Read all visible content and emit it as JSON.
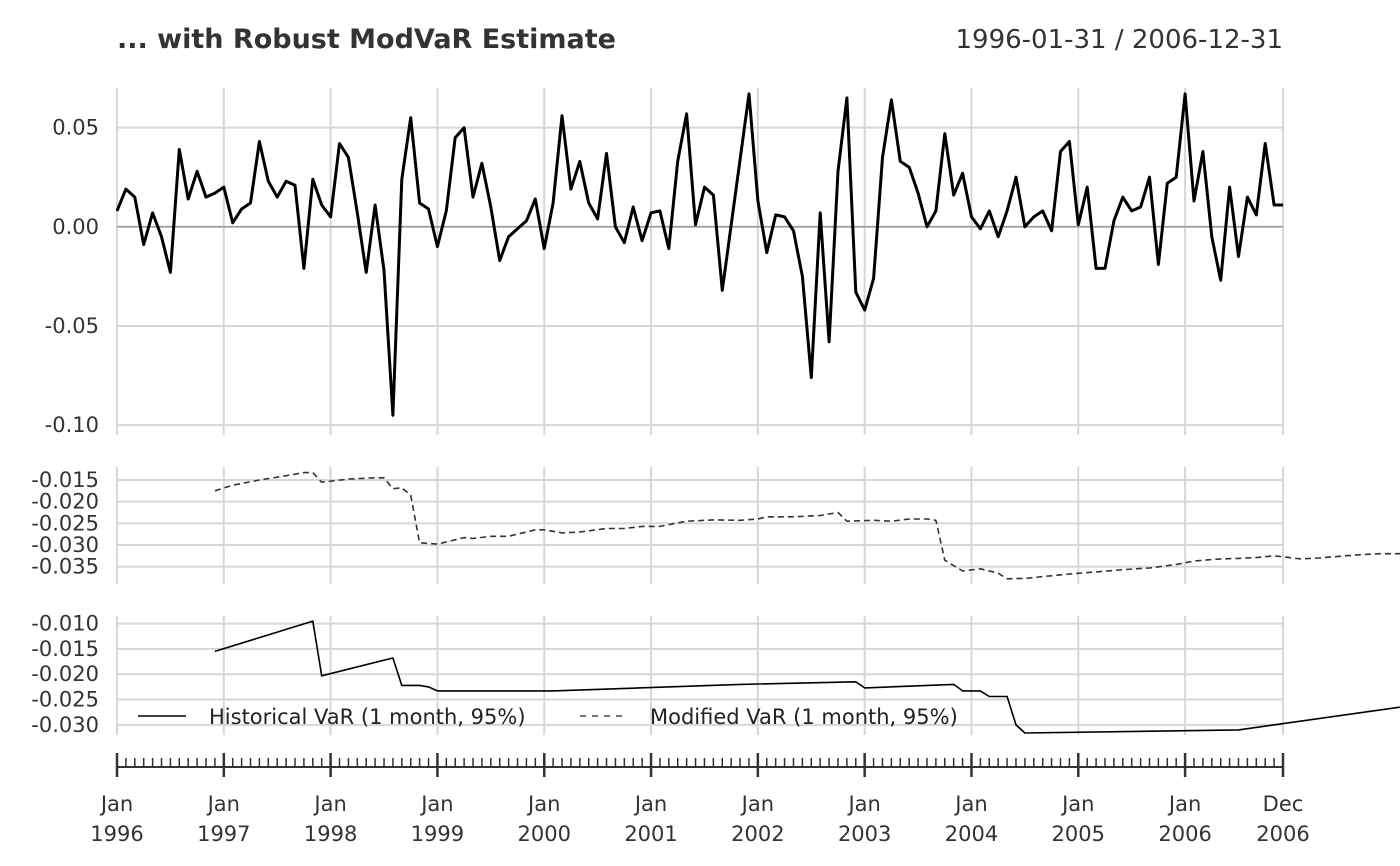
{
  "chart_data": {
    "type": "line",
    "title": "... with Robust ModVaR Estimate",
    "date_range": "1996-01-31 / 2006-12-31",
    "x_labels": [
      {
        "m": "Jan",
        "y": "1996"
      },
      {
        "m": "Jan",
        "y": "1997"
      },
      {
        "m": "Jan",
        "y": "1998"
      },
      {
        "m": "Jan",
        "y": "1999"
      },
      {
        "m": "Jan",
        "y": "2000"
      },
      {
        "m": "Jan",
        "y": "2001"
      },
      {
        "m": "Jan",
        "y": "2002"
      },
      {
        "m": "Jan",
        "y": "2003"
      },
      {
        "m": "Jan",
        "y": "2004"
      },
      {
        "m": "Jan",
        "y": "2005"
      },
      {
        "m": "Jan",
        "y": "2006"
      },
      {
        "m": "Dec",
        "y": "2006"
      }
    ],
    "panels": [
      {
        "name": "returns",
        "ylim": [
          -0.105,
          0.07
        ],
        "ticks": [
          0.05,
          0.0,
          -0.05,
          -0.1
        ],
        "tick_labels": [
          "0.05",
          "0.00",
          "-0.05",
          "-0.10"
        ],
        "zero_line": true,
        "series": [
          {
            "name": "Returns",
            "style": "solid",
            "color": "#000000",
            "start_month": 0,
            "values": [
              0.008,
              0.019,
              0.015,
              -0.009,
              0.007,
              -0.005,
              -0.023,
              0.039,
              0.014,
              0.028,
              0.015,
              0.017,
              0.02,
              0.002,
              0.009,
              0.012,
              0.043,
              0.023,
              0.015,
              0.023,
              0.021,
              -0.021,
              0.024,
              0.011,
              0.005,
              0.042,
              0.035,
              0.007,
              -0.023,
              0.011,
              -0.022,
              -0.095,
              0.024,
              0.055,
              0.012,
              0.009,
              -0.01,
              0.008,
              0.045,
              0.05,
              0.015,
              0.032,
              0.01,
              -0.017,
              -0.005,
              -0.001,
              0.003,
              0.014,
              -0.011,
              0.012,
              0.056,
              0.019,
              0.033,
              0.012,
              0.004,
              0.037,
              0.0,
              -0.008,
              0.01,
              -0.007,
              0.007,
              0.008,
              -0.011,
              0.033,
              0.057,
              0.001,
              0.02,
              0.016,
              -0.032,
              0.001,
              0.034,
              0.067,
              0.013,
              -0.013,
              0.006,
              0.005,
              -0.002,
              -0.025,
              -0.076,
              0.007,
              -0.058,
              0.028,
              0.065,
              -0.033,
              -0.042,
              -0.026,
              0.035,
              0.064,
              0.033,
              0.03,
              0.017,
              0.0,
              0.008,
              0.047,
              0.016,
              0.027,
              0.005,
              -0.001,
              0.008,
              -0.005,
              0.008,
              0.025,
              0.0,
              0.005,
              0.008,
              -0.002,
              0.038,
              0.043,
              0.001,
              0.02,
              -0.021,
              -0.021,
              0.003,
              0.015,
              0.008,
              0.01,
              0.025,
              -0.019,
              0.022,
              0.025,
              0.067,
              0.013,
              0.038,
              -0.005,
              -0.027,
              0.02,
              -0.015,
              0.015,
              0.006,
              0.042,
              0.011,
              0.011
            ]
          }
        ]
      },
      {
        "name": "modified-var",
        "ylim": [
          -0.039,
          -0.012
        ],
        "ticks": [
          -0.015,
          -0.02,
          -0.025,
          -0.03,
          -0.035
        ],
        "tick_labels": [
          "-0.015",
          "-0.020",
          "-0.025",
          "-0.030",
          "-0.035"
        ],
        "series": [
          {
            "name": "Modified VaR (1 month, 95%)",
            "style": "dashed",
            "color": "#333333",
            "points": [
              [
                11,
                -0.0175
              ],
              [
                13,
                -0.0162
              ],
              [
                16,
                -0.015
              ],
              [
                19,
                -0.014
              ],
              [
                21,
                -0.0133
              ],
              [
                22,
                -0.0133
              ],
              [
                23,
                -0.0155
              ],
              [
                26,
                -0.0148
              ],
              [
                29,
                -0.0145
              ],
              [
                30,
                -0.0145
              ],
              [
                31,
                -0.017
              ],
              [
                32,
                -0.0168
              ],
              [
                33,
                -0.0185
              ],
              [
                34,
                -0.0295
              ],
              [
                36,
                -0.0298
              ],
              [
                39,
                -0.0283
              ],
              [
                40,
                -0.0285
              ],
              [
                42,
                -0.028
              ],
              [
                44,
                -0.028
              ],
              [
                47,
                -0.0265
              ],
              [
                48,
                -0.0265
              ],
              [
                50,
                -0.0272
              ],
              [
                52,
                -0.027
              ],
              [
                55,
                -0.0262
              ],
              [
                57,
                -0.0262
              ],
              [
                59,
                -0.0257
              ],
              [
                61,
                -0.0257
              ],
              [
                64,
                -0.0245
              ],
              [
                67,
                -0.0242
              ],
              [
                70,
                -0.0243
              ],
              [
                72,
                -0.024
              ],
              [
                73,
                -0.0235
              ],
              [
                76,
                -0.0235
              ],
              [
                79,
                -0.0232
              ],
              [
                81,
                -0.0225
              ],
              [
                82,
                -0.0245
              ],
              [
                85,
                -0.0243
              ],
              [
                87,
                -0.0245
              ],
              [
                89,
                -0.024
              ],
              [
                91,
                -0.024
              ],
              [
                92,
                -0.0243
              ],
              [
                93,
                -0.0335
              ],
              [
                95,
                -0.036
              ],
              [
                97,
                -0.0355
              ],
              [
                99,
                -0.0365
              ],
              [
                100,
                -0.0378
              ],
              [
                102,
                -0.0377
              ],
              [
                104,
                -0.0373
              ],
              [
                107,
                -0.0367
              ],
              [
                110,
                -0.0362
              ],
              [
                113,
                -0.0357
              ],
              [
                116,
                -0.0353
              ],
              [
                119,
                -0.0345
              ],
              [
                121,
                -0.0337
              ],
              [
                124,
                -0.0332
              ],
              [
                126,
                -0.0331
              ],
              [
                128,
                -0.0329
              ],
              [
                130,
                -0.0325
              ],
              [
                133,
                -0.0332
              ],
              [
                135,
                -0.033
              ],
              [
                138,
                -0.0325
              ],
              [
                140,
                -0.0322
              ],
              [
                142,
                -0.032
              ],
              [
                145,
                -0.032
              ],
              [
                148,
                -0.0318
              ],
              [
                150,
                -0.0317
              ],
              [
                152,
                -0.0322
              ],
              [
                155,
                -0.0322
              ],
              [
                158,
                -0.0317
              ],
              [
                161,
                -0.0315
              ],
              [
                163,
                -0.0313
              ]
            ]
          }
        ]
      },
      {
        "name": "historical-var",
        "ylim": [
          -0.032,
          -0.0085
        ],
        "ticks": [
          -0.01,
          -0.015,
          -0.02,
          -0.025,
          -0.03
        ],
        "tick_labels": [
          "-0.010",
          "-0.015",
          "-0.020",
          "-0.025",
          "-0.030"
        ],
        "series": [
          {
            "name": "Historical VaR (1 month, 95%)",
            "style": "solid",
            "color": "#000000",
            "points": [
              [
                11,
                -0.0155
              ],
              [
                22,
                -0.0095
              ],
              [
                23,
                -0.0203
              ],
              [
                31,
                -0.0168
              ],
              [
                32,
                -0.0222
              ],
              [
                34,
                -0.0222
              ],
              [
                35,
                -0.0225
              ],
              [
                36,
                -0.0233
              ],
              [
                49,
                -0.0233
              ],
              [
                70,
                -0.022
              ],
              [
                83,
                -0.0215
              ],
              [
                84,
                -0.0227
              ],
              [
                94,
                -0.022
              ],
              [
                95,
                -0.0233
              ],
              [
                97,
                -0.0233
              ],
              [
                98,
                -0.0244
              ],
              [
                100,
                -0.0244
              ],
              [
                101,
                -0.03
              ],
              [
                102,
                -0.0316
              ],
              [
                126,
                -0.031
              ],
              [
                149,
                -0.0253
              ],
              [
                153,
                -0.0252
              ],
              [
                154,
                -0.0266
              ],
              [
                163,
                -0.0261
              ]
            ]
          }
        ]
      }
    ],
    "legend": [
      {
        "label": "Historical VaR (1 month, 95%)",
        "style": "solid"
      },
      {
        "label": "Modified VaR (1 month, 95%)",
        "style": "dashed"
      }
    ]
  }
}
